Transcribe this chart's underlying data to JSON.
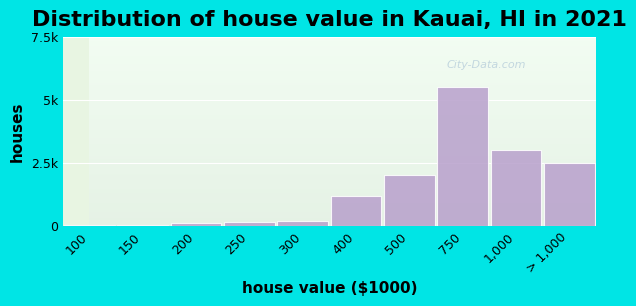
{
  "title": "Distribution of house value in Kauai, HI in 2021",
  "xlabel": "house value ($1000)",
  "ylabel": "houses",
  "categories": [
    "100",
    "150",
    "200",
    "250",
    "300",
    "400",
    "500",
    "750",
    "1,000",
    "> 1,000"
  ],
  "values": [
    50,
    50,
    100,
    160,
    200,
    1200,
    2000,
    5500,
    3000,
    2500
  ],
  "bar_color": "#b8a0cc",
  "bar_edge_color": "#ffffff",
  "ylim": [
    0,
    7500
  ],
  "yticks": [
    0,
    2500,
    5000,
    7500
  ],
  "ytick_labels": [
    "0",
    "2.5k",
    "5k",
    "7.5k"
  ],
  "bg_outer": "#00e5e5",
  "bg_inner_colors": [
    "#e8f5e0",
    "#f0f8f0",
    "#f8fff8"
  ],
  "title_fontsize": 16,
  "axis_label_fontsize": 11,
  "tick_fontsize": 9,
  "watermark": "City-Data.com"
}
